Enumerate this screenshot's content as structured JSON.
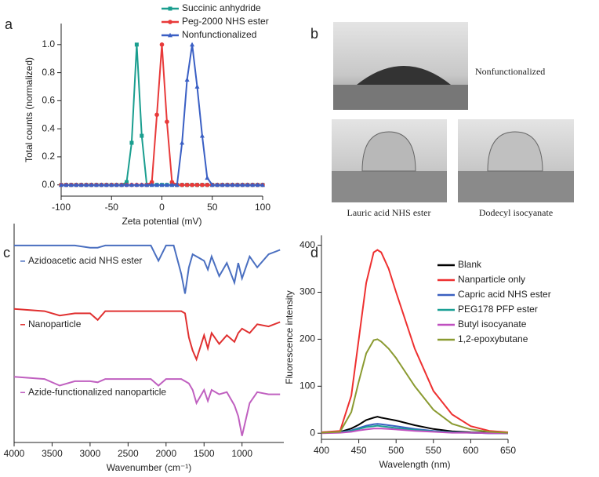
{
  "panel_labels": [
    "a",
    "b",
    "c",
    "d"
  ],
  "photo_labels": [
    "Nonfunctionalized",
    "Lauric acid NHS ester",
    "Dodecyl isocyanate"
  ],
  "chart_data": [
    {
      "type": "line",
      "xlabel": "Zeta potential (mV)",
      "ylabel": "Total counts (normalized)",
      "x": [
        -100,
        -95,
        -90,
        -85,
        -80,
        -75,
        -70,
        -65,
        -60,
        -55,
        -50,
        -45,
        -40,
        -35,
        -30,
        -25,
        -20,
        -15,
        -10,
        -5,
        0,
        5,
        10,
        15,
        20,
        25,
        30,
        35,
        40,
        45,
        50,
        55,
        60,
        65,
        70,
        75,
        80,
        85,
        90,
        95,
        100
      ],
      "xlim": [
        -100,
        100
      ],
      "xticks": [
        -100,
        -50,
        0,
        50,
        100
      ],
      "ylim": [
        -0.08,
        1.15
      ],
      "yticks": [
        {
          "value": 0,
          "label": "0.0"
        },
        0.2,
        0.4,
        0.6,
        0.8,
        {
          "value": 1,
          "label": "1.0"
        }
      ],
      "series": [
        {
          "name": "Succinic anhydride",
          "color": "#1a9e8f",
          "values": [
            0,
            0,
            0,
            0,
            0,
            0,
            0,
            0,
            0,
            0,
            0,
            0,
            0,
            0.02,
            0.3,
            1.0,
            0.35,
            0,
            0,
            0,
            0,
            0,
            0,
            0,
            0,
            0,
            0,
            0,
            0,
            0,
            0,
            0,
            0,
            0,
            0,
            0,
            0,
            0,
            0,
            0,
            0
          ]
        },
        {
          "name": "Peg-2000 NHS ester",
          "color": "#e83a3a",
          "values": [
            0,
            0,
            0,
            0,
            0,
            0,
            0,
            0,
            0,
            0,
            0,
            0,
            0,
            0,
            0,
            0,
            0,
            0,
            0.02,
            0.5,
            1.0,
            0.45,
            0.02,
            0,
            0,
            0,
            0,
            0,
            0,
            0,
            0,
            0,
            0,
            0,
            0,
            0,
            0,
            0,
            0,
            0,
            0
          ]
        },
        {
          "name": "Nonfunctionalized",
          "color": "#3a5fc4",
          "values": [
            0,
            0,
            0,
            0,
            0,
            0,
            0,
            0,
            0,
            0,
            0,
            0,
            0,
            0,
            0,
            0,
            0,
            0,
            0,
            0,
            0,
            0,
            0,
            0,
            0.3,
            0.75,
            1.0,
            0.7,
            0.35,
            0.05,
            0,
            0,
            0,
            0,
            0,
            0,
            0,
            0,
            0,
            0,
            0
          ]
        }
      ]
    },
    {
      "type": "line",
      "xlabel": "Wavenumber (cm⁻¹)",
      "x": [
        4000,
        3600,
        3400,
        3200,
        3000,
        2900,
        2800,
        2500,
        2200,
        2100,
        2000,
        1900,
        1800,
        1750,
        1700,
        1650,
        1600,
        1500,
        1450,
        1400,
        1300,
        1200,
        1100,
        1050,
        1000,
        900,
        800,
        650,
        500
      ],
      "xlim": [
        4000,
        450
      ],
      "xticks": [
        4000,
        3500,
        3000,
        2500,
        2000,
        1500,
        1000
      ],
      "ylim": [
        0,
        10
      ],
      "series": [
        {
          "name": "Azidoacetic acid NHS ester",
          "color": "#4a6fc0",
          "values": [
            9.0,
            9.0,
            9.0,
            9.0,
            8.9,
            8.9,
            9.0,
            9.0,
            9.0,
            8.3,
            9.0,
            9.0,
            7.7,
            6.8,
            8.0,
            8.6,
            8.5,
            8.3,
            7.9,
            8.5,
            7.6,
            8.2,
            7.3,
            8.2,
            7.5,
            8.5,
            8.0,
            8.6,
            8.8
          ]
        },
        {
          "name": "Nanoparticle",
          "color": "#e03030",
          "values": [
            6.1,
            6.0,
            5.8,
            5.9,
            5.9,
            5.6,
            6.0,
            6.0,
            6.0,
            6.0,
            6.0,
            6.0,
            6.0,
            5.9,
            4.8,
            4.2,
            3.8,
            4.9,
            4.3,
            5.0,
            4.5,
            4.9,
            4.6,
            5.0,
            5.2,
            5.0,
            5.4,
            5.3,
            5.5
          ]
        },
        {
          "name": "Azide-functionalized nanoparticle",
          "color": "#c060c0",
          "values": [
            3.0,
            2.9,
            2.6,
            2.8,
            2.8,
            2.75,
            2.9,
            2.9,
            2.9,
            2.6,
            2.9,
            2.9,
            2.9,
            2.8,
            2.7,
            2.4,
            1.8,
            2.4,
            1.9,
            2.4,
            2.2,
            2.3,
            1.7,
            1.2,
            0.3,
            1.8,
            2.3,
            2.2,
            2.2
          ]
        }
      ]
    },
    {
      "type": "line",
      "xlabel": "Wavelength (nm)",
      "ylabel": "Fluorescence intensity",
      "x": [
        400,
        425,
        440,
        450,
        460,
        470,
        475,
        480,
        490,
        500,
        525,
        550,
        575,
        600,
        625,
        650
      ],
      "xlim": [
        400,
        650
      ],
      "xticks": [
        400,
        450,
        500,
        550,
        600,
        650
      ],
      "ylim": [
        -13,
        421
      ],
      "yticks": [
        0,
        100,
        200,
        300,
        400
      ],
      "series": [
        {
          "name": "Blank",
          "color": "#000000",
          "values": [
            2,
            3,
            10,
            18,
            28,
            33,
            35,
            33,
            30,
            27,
            17,
            9,
            4,
            2,
            1,
            0
          ]
        },
        {
          "name": "Nanparticle only",
          "color": "#ee3030",
          "values": [
            2,
            5,
            80,
            200,
            320,
            385,
            390,
            385,
            350,
            300,
            180,
            90,
            40,
            15,
            5,
            2
          ]
        },
        {
          "name": "Capric acid NHS ester",
          "color": "#3a60c0",
          "values": [
            1,
            2,
            6,
            11,
            16,
            19,
            20,
            19,
            17,
            15,
            9,
            5,
            2,
            1,
            0,
            0
          ]
        },
        {
          "name": "PEG178 PFP ester",
          "color": "#1aa095",
          "values": [
            1,
            2,
            5,
            9,
            13,
            15,
            16,
            15,
            13,
            11,
            7,
            4,
            2,
            1,
            0,
            0
          ]
        },
        {
          "name": "Butyl isocyanate",
          "color": "#c050c0",
          "values": [
            0,
            1,
            3,
            6,
            8,
            10,
            10,
            10,
            9,
            8,
            5,
            3,
            1,
            1,
            0,
            0
          ]
        },
        {
          "name": "1,2-epoxybutane",
          "color": "#8a9a30",
          "values": [
            1,
            3,
            45,
            110,
            170,
            198,
            200,
            195,
            180,
            160,
            100,
            50,
            20,
            8,
            3,
            1
          ]
        }
      ]
    }
  ]
}
